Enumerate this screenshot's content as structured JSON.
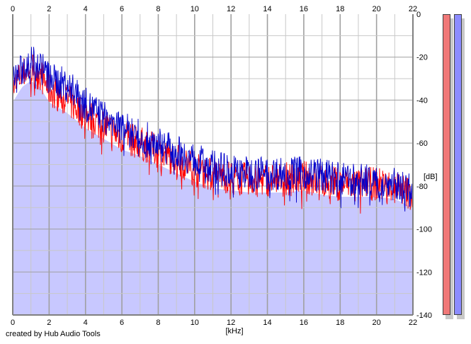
{
  "footer": {
    "credit": "created by Hub Audio Tools"
  },
  "colors": {
    "left_channel": "#ff0000",
    "right_channel": "#0000cc",
    "fill": "#c8c8ff",
    "grid_major": "#a0a0a0",
    "grid_minor": "#c8c8c8",
    "meter_left": "#f07878",
    "meter_right": "#8c8cff"
  },
  "chart_data": {
    "type": "area",
    "title": "",
    "xlabel": "[kHz]",
    "ylabel": "[dB]",
    "xlim": [
      0,
      22
    ],
    "ylim": [
      -140,
      0
    ],
    "x_ticks": [
      0,
      2,
      4,
      6,
      8,
      10,
      12,
      14,
      16,
      18,
      20,
      22
    ],
    "y_ticks": [
      0,
      -20,
      -40,
      -60,
      -80,
      -100,
      -120,
      -140
    ],
    "grid": true,
    "series": [
      {
        "color": "#ff0000",
        "x": [
          0,
          0.5,
          1,
          1.5,
          2,
          3,
          4,
          5,
          6,
          7,
          8,
          9,
          10,
          11,
          12,
          13,
          14,
          15,
          16,
          17,
          18,
          19,
          20,
          21,
          22
        ],
        "y": [
          -35,
          -28,
          -25,
          -28,
          -35,
          -40,
          -47,
          -52,
          -57,
          -60,
          -64,
          -68,
          -72,
          -75,
          -76,
          -77,
          -77,
          -77,
          -76,
          -78,
          -79,
          -79,
          -79,
          -80,
          -84
        ]
      },
      {
        "color": "#0000cc",
        "x": [
          0,
          0.5,
          1,
          1.5,
          2,
          3,
          4,
          5,
          6,
          7,
          8,
          9,
          10,
          11,
          12,
          13,
          14,
          15,
          16,
          17,
          18,
          19,
          20,
          21,
          22
        ],
        "y": [
          -32,
          -26,
          -22,
          -24,
          -30,
          -33,
          -42,
          -48,
          -53,
          -57,
          -60,
          -64,
          -68,
          -71,
          -73,
          -74,
          -74,
          -74,
          -74,
          -75,
          -77,
          -77,
          -78,
          -79,
          -82
        ]
      }
    ]
  },
  "meters": {
    "left_level": 1.0,
    "right_level": 1.0
  }
}
